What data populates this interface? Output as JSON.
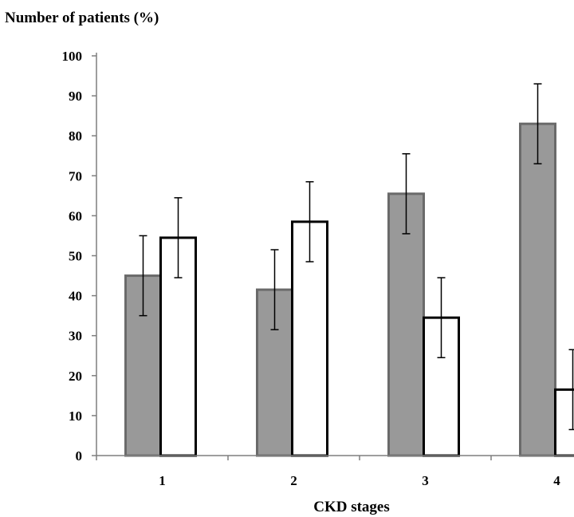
{
  "chart_data": {
    "type": "bar",
    "title": "Number of patients (%)",
    "xlabel": "CKD stages",
    "ylabel": "",
    "ylim": [
      0,
      100
    ],
    "yticks": [
      0,
      10,
      20,
      30,
      40,
      50,
      60,
      70,
      80,
      90,
      100
    ],
    "categories": [
      "1",
      "2",
      "3",
      "4"
    ],
    "series": [
      {
        "fill": "#999999",
        "stroke": "#6a6a6a",
        "values": [
          45,
          41.5,
          65.5,
          83
        ],
        "errors": [
          10,
          10,
          10,
          10
        ]
      },
      {
        "fill": "#ffffff",
        "stroke": "#000000",
        "values": [
          54.5,
          58.5,
          34.5,
          16.5
        ],
        "errors": [
          10,
          10,
          10,
          10
        ]
      }
    ],
    "grid": false,
    "legend": "none"
  }
}
